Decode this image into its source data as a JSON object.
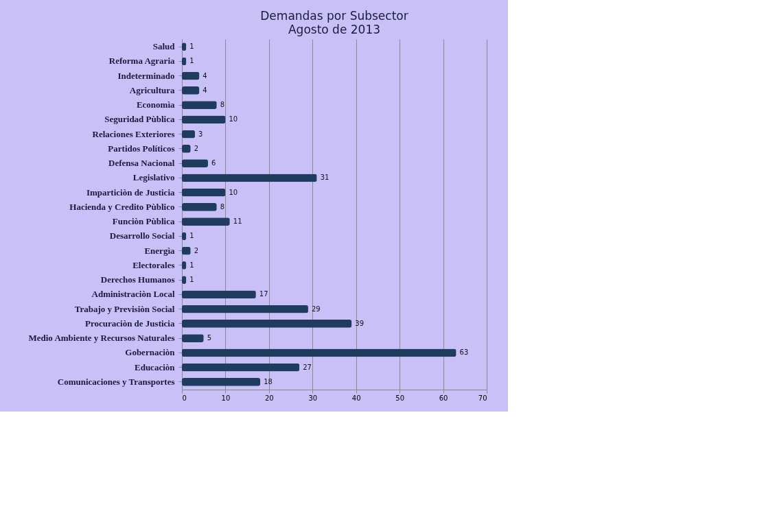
{
  "chart_data": {
    "type": "bar",
    "orientation": "horizontal",
    "title": "Demandas por Subsector",
    "subtitle": "Agosto de 2013",
    "categories": [
      "Salud",
      "Reforma Agraria",
      "Indeterminado",
      "Agricultura",
      "Economìa",
      "Seguridad Pùblica",
      "Relaciones Exteriores",
      "Partidos Políticos",
      "Defensa Nacional",
      "Legislativo",
      "Imparticiòn de Justicia",
      "Hacienda y Credito Pùblico",
      "Funciòn Pùblica",
      "Desarrollo Social",
      "Energìa",
      "Electorales",
      "Derechos Humanos",
      "Administraciòn Local",
      "Trabajo y Previsiòn Social",
      "Procuraciòn de Justicia",
      "Medio Ambiente y Recursos Naturales",
      "Gobernaciòn",
      "Educaciòn",
      "Comunicaciones y Transportes"
    ],
    "values": [
      1,
      1,
      4,
      4,
      8,
      10,
      3,
      2,
      6,
      31,
      10,
      8,
      11,
      1,
      2,
      1,
      1,
      17,
      29,
      39,
      5,
      63,
      27,
      18
    ],
    "color": "#1f3b5e",
    "data_labels": true,
    "xlim": [
      0,
      70
    ],
    "xticks": [
      0,
      10,
      20,
      30,
      40,
      50,
      60,
      70
    ],
    "grid": "x"
  }
}
